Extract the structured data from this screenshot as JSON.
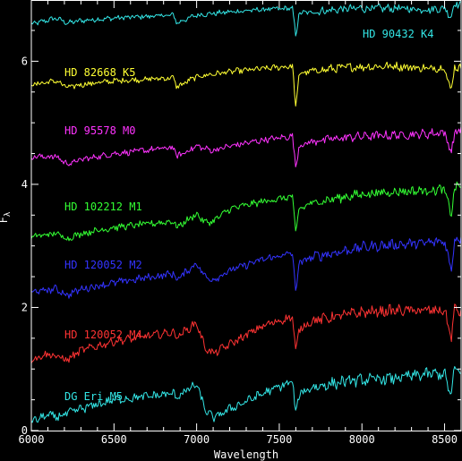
{
  "chart_data": {
    "type": "line",
    "title": "",
    "xlabel": "Wavelength",
    "ylabel": "F_λ",
    "xlim": [
      6000,
      8600
    ],
    "ylim": [
      0,
      6.98
    ],
    "x_ticks": [
      6000,
      6500,
      7000,
      7500,
      8000,
      8500
    ],
    "y_ticks": [
      0,
      2,
      4,
      6
    ],
    "grid": false,
    "legend": "inline labels",
    "series": [
      {
        "name": "HD 90432 K4",
        "color": "#33e6e6",
        "x": [
          6000,
          6150,
          6220,
          6300,
          6500,
          6860,
          6880,
          7000,
          7200,
          7400,
          7580,
          7600,
          7620,
          7700,
          7900,
          8000,
          8200,
          8400,
          8500,
          8540,
          8560,
          8600
        ],
        "y": [
          6.6,
          6.7,
          6.62,
          6.66,
          6.7,
          6.75,
          6.62,
          6.75,
          6.8,
          6.84,
          6.86,
          6.4,
          6.78,
          6.8,
          6.85,
          6.86,
          6.86,
          6.84,
          6.86,
          6.72,
          6.94,
          6.92
        ]
      },
      {
        "name": "HD 82668 K5",
        "color": "#ffff33",
        "x": [
          6000,
          6150,
          6220,
          6300,
          6500,
          6860,
          6880,
          7000,
          7200,
          7400,
          7580,
          7600,
          7620,
          7700,
          7900,
          8000,
          8200,
          8400,
          8500,
          8540,
          8560,
          8600
        ],
        "y": [
          5.62,
          5.68,
          5.57,
          5.62,
          5.68,
          5.73,
          5.58,
          5.75,
          5.83,
          5.88,
          5.92,
          5.23,
          5.8,
          5.84,
          5.9,
          5.91,
          5.92,
          5.88,
          5.9,
          5.5,
          5.92,
          5.88
        ]
      },
      {
        "name": "HD 95578 M0",
        "color": "#ff33ff",
        "x": [
          6000,
          6150,
          6220,
          6300,
          6500,
          6860,
          6880,
          7000,
          7050,
          7100,
          7200,
          7400,
          7580,
          7600,
          7620,
          7700,
          7900,
          8000,
          8200,
          8400,
          8500,
          8540,
          8560,
          8600
        ],
        "y": [
          4.45,
          4.45,
          4.33,
          4.4,
          4.5,
          4.6,
          4.45,
          4.62,
          4.58,
          4.55,
          4.62,
          4.72,
          4.78,
          4.28,
          4.62,
          4.7,
          4.76,
          4.78,
          4.8,
          4.82,
          4.85,
          4.5,
          4.85,
          4.87
        ]
      },
      {
        "name": "HD 102212 M1",
        "color": "#33ff33",
        "x": [
          6000,
          6150,
          6220,
          6300,
          6500,
          6860,
          6880,
          7000,
          7050,
          7100,
          7200,
          7400,
          7580,
          7600,
          7620,
          7700,
          7900,
          8000,
          8200,
          8400,
          8500,
          8540,
          8560,
          8600
        ],
        "y": [
          3.15,
          3.2,
          3.12,
          3.2,
          3.3,
          3.4,
          3.3,
          3.52,
          3.38,
          3.4,
          3.6,
          3.72,
          3.8,
          3.2,
          3.6,
          3.7,
          3.8,
          3.84,
          3.88,
          3.9,
          3.92,
          3.48,
          3.95,
          3.97
        ]
      },
      {
        "name": "HD 120052 M2",
        "color": "#3333ff",
        "x": [
          6000,
          6150,
          6220,
          6300,
          6500,
          6860,
          6880,
          7000,
          7050,
          7100,
          7200,
          7400,
          7580,
          7600,
          7620,
          7700,
          7900,
          8000,
          8200,
          8400,
          8500,
          8540,
          8560,
          8600
        ],
        "y": [
          2.25,
          2.3,
          2.2,
          2.3,
          2.4,
          2.55,
          2.45,
          2.72,
          2.5,
          2.45,
          2.6,
          2.78,
          2.88,
          2.25,
          2.72,
          2.82,
          2.92,
          2.98,
          3.02,
          3.05,
          3.08,
          2.6,
          3.1,
          3.12
        ]
      },
      {
        "name": "HD 120052 M4",
        "color": "#ff3333",
        "x": [
          6000,
          6100,
          6150,
          6220,
          6300,
          6500,
          6860,
          6880,
          7000,
          7050,
          7100,
          7200,
          7400,
          7580,
          7600,
          7620,
          7700,
          7900,
          8000,
          8200,
          8400,
          8500,
          8540,
          8560,
          8600
        ],
        "y": [
          1.15,
          1.25,
          1.2,
          1.15,
          1.3,
          1.45,
          1.6,
          1.52,
          1.75,
          1.35,
          1.25,
          1.4,
          1.7,
          1.85,
          1.25,
          1.65,
          1.78,
          1.88,
          1.92,
          1.95,
          1.95,
          1.95,
          1.5,
          1.97,
          1.92
        ]
      },
      {
        "name": "DG Eri M5",
        "color": "#33e6e6",
        "x": [
          6000,
          6100,
          6150,
          6220,
          6300,
          6500,
          6860,
          6880,
          7000,
          7050,
          7100,
          7200,
          7400,
          7580,
          7600,
          7620,
          7700,
          7900,
          8000,
          8200,
          8400,
          8500,
          8540,
          8560,
          8600
        ],
        "y": [
          0.15,
          0.25,
          0.22,
          0.28,
          0.35,
          0.5,
          0.6,
          0.55,
          0.75,
          0.35,
          0.2,
          0.35,
          0.6,
          0.8,
          0.25,
          0.6,
          0.7,
          0.8,
          0.82,
          0.85,
          0.92,
          0.92,
          0.55,
          1.0,
          0.98
        ]
      }
    ]
  }
}
